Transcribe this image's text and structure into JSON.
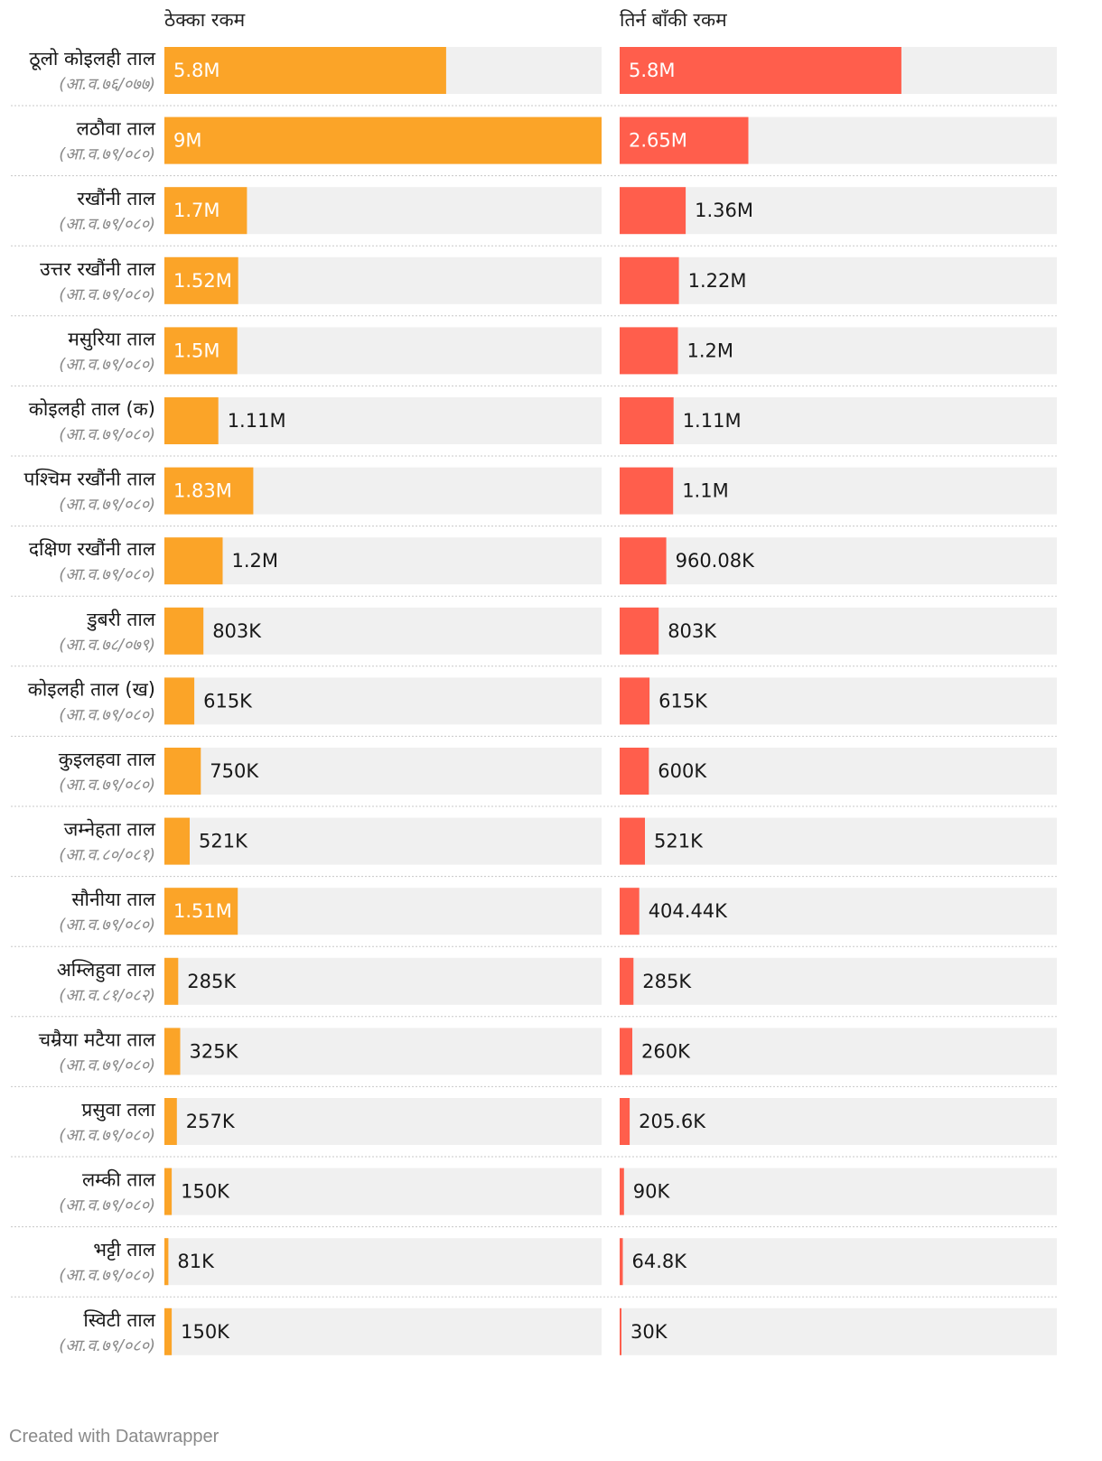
{
  "chart_data": {
    "type": "bar",
    "orientation": "horizontal",
    "layout": "split-bars",
    "columns": [
      {
        "key": "contract",
        "title": "ठेक्का रकम",
        "color": "#FBA428",
        "max": 9000000
      },
      {
        "key": "remaining",
        "title": "तिर्न बाँकी रकम",
        "color": "#FF5E4C",
        "max": 9000000
      }
    ],
    "rows": [
      {
        "name": "ठूलो कोइलही ताल",
        "period": "(आ.व.७६/०७७)",
        "contract": 5800000,
        "contract_label": "5.8M",
        "remaining": 5800000,
        "remaining_label": "5.8M"
      },
      {
        "name": "लठौवा ताल",
        "period": "(आ.व.७९/०८०)",
        "contract": 9000000,
        "contract_label": "9M",
        "remaining": 2650000,
        "remaining_label": "2.65M"
      },
      {
        "name": "रखौंनी ताल",
        "period": "(आ.व.७९/०८०)",
        "contract": 1700000,
        "contract_label": "1.7M",
        "remaining": 1360000,
        "remaining_label": "1.36M"
      },
      {
        "name": "उत्तर रखौंनी ताल",
        "period": "(आ.व.७९/०८०)",
        "contract": 1520000,
        "contract_label": "1.52M",
        "remaining": 1220000,
        "remaining_label": "1.22M"
      },
      {
        "name": "मसुरिया ताल",
        "period": "(आ.व.७९/०८०)",
        "contract": 1500000,
        "contract_label": "1.5M",
        "remaining": 1200000,
        "remaining_label": "1.2M"
      },
      {
        "name": "कोइलही ताल (क)",
        "period": "(आ.व.७९/०८०)",
        "contract": 1110000,
        "contract_label": "1.11M",
        "remaining": 1110000,
        "remaining_label": "1.11M"
      },
      {
        "name": "पश्चिम रखौंनी ताल",
        "period": "(आ.व.७९/०८०)",
        "contract": 1830000,
        "contract_label": "1.83M",
        "remaining": 1100000,
        "remaining_label": "1.1M"
      },
      {
        "name": "दक्षिण रखौंनी ताल",
        "period": "(आ.व.७९/०८०)",
        "contract": 1200000,
        "contract_label": "1.2M",
        "remaining": 960080,
        "remaining_label": "960.08K"
      },
      {
        "name": "डुबरी ताल",
        "period": "(आ.व.७८/०७९)",
        "contract": 803000,
        "contract_label": "803K",
        "remaining": 803000,
        "remaining_label": "803K"
      },
      {
        "name": "कोइलही ताल (ख)",
        "period": "(आ.व.७९/०८०)",
        "contract": 615000,
        "contract_label": "615K",
        "remaining": 615000,
        "remaining_label": "615K"
      },
      {
        "name": "कुइलहवा ताल",
        "period": "(आ.व.७९/०८०)",
        "contract": 750000,
        "contract_label": "750K",
        "remaining": 600000,
        "remaining_label": "600K"
      },
      {
        "name": "जम्नेहता ताल",
        "period": "(आ.व.८०/०८१)",
        "contract": 521000,
        "contract_label": "521K",
        "remaining": 521000,
        "remaining_label": "521K"
      },
      {
        "name": "सौनीया ताल",
        "period": "(आ.व.७९/०८०)",
        "contract": 1510000,
        "contract_label": "1.51M",
        "remaining": 404440,
        "remaining_label": "404.44K"
      },
      {
        "name": "अम्लिहुवा ताल",
        "period": "(आ.व.८१/०८२)",
        "contract": 285000,
        "contract_label": "285K",
        "remaining": 285000,
        "remaining_label": "285K"
      },
      {
        "name": "चम्रैया मटैया ताल",
        "period": "(आ.व.७९/०८०)",
        "contract": 325000,
        "contract_label": "325K",
        "remaining": 260000,
        "remaining_label": "260K"
      },
      {
        "name": "प्रसुवा तला",
        "period": "(आ.व.७९/०८०)",
        "contract": 257000,
        "contract_label": "257K",
        "remaining": 205600,
        "remaining_label": "205.6K"
      },
      {
        "name": "लम्की ताल",
        "period": "(आ.व.७९/०८०)",
        "contract": 150000,
        "contract_label": "150K",
        "remaining": 90000,
        "remaining_label": "90K"
      },
      {
        "name": "भट्टी ताल",
        "period": "(आ.व.७९/०८०)",
        "contract": 81000,
        "contract_label": "81K",
        "remaining": 64800,
        "remaining_label": "64.8K"
      },
      {
        "name": "स्विटी ताल",
        "period": "(आ.व.७९/०८०)",
        "contract": 150000,
        "contract_label": "150K",
        "remaining": 30000,
        "remaining_label": "30K"
      }
    ]
  },
  "footer": {
    "credit": "Created with Datawrapper"
  }
}
